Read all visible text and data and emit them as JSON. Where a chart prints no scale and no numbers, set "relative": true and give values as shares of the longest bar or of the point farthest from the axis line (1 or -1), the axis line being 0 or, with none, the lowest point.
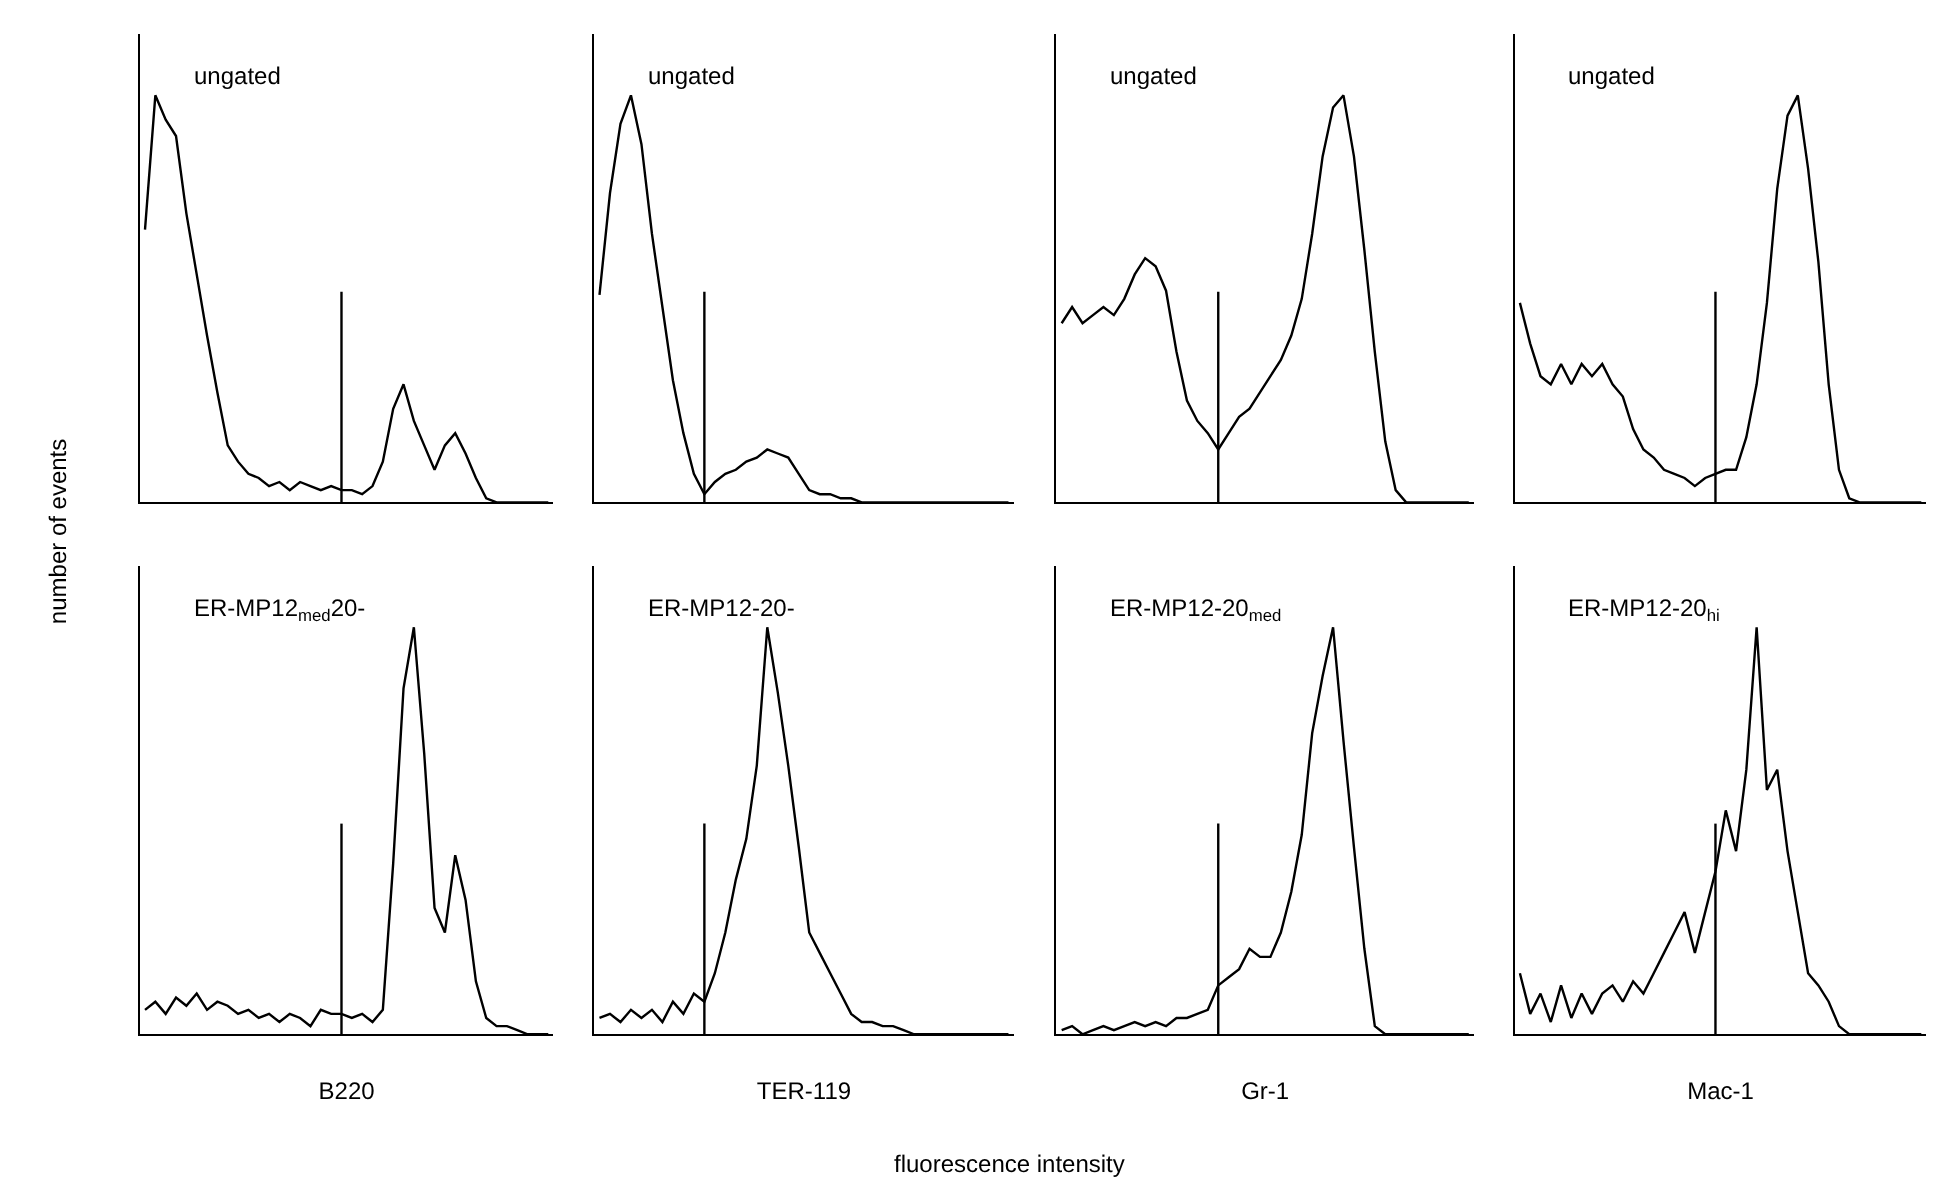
{
  "chart_data": [
    {
      "type": "line",
      "relative": true,
      "color": "#000000",
      "ylabel": "number of events",
      "annotations": [
        "ungated"
      ],
      "categories": [
        null,
        null,
        null,
        null,
        null,
        null,
        null,
        null,
        null,
        null,
        null,
        null,
        null,
        null,
        null,
        null,
        null,
        null,
        null,
        null,
        null,
        null,
        null,
        null,
        null,
        null,
        null,
        null,
        null,
        null,
        null,
        null,
        null,
        null,
        null,
        null,
        null,
        null,
        null,
        null
      ],
      "values": [
        0.67,
        1,
        0.94,
        0.9,
        0.71,
        0.56,
        0.41,
        0.27,
        0.14,
        0.1,
        0.07,
        0.06,
        0.04,
        0.05,
        0.03,
        0.05,
        0.04,
        0.03,
        0.04,
        0.03,
        0.03,
        0.02,
        0.04,
        0.1,
        0.23,
        0.29,
        0.2,
        0.14,
        0.08,
        0.14,
        0.17,
        0.12,
        0.06,
        0.01,
        0,
        0,
        0,
        0,
        0,
        0
      ]
    },
    {
      "type": "line",
      "relative": true,
      "color": "#000000",
      "annotations": [
        "ungated"
      ],
      "categories": [
        null,
        null,
        null,
        null,
        null,
        null,
        null,
        null,
        null,
        null,
        null,
        null,
        null,
        null,
        null,
        null,
        null,
        null,
        null,
        null,
        null,
        null,
        null,
        null,
        null,
        null,
        null,
        null,
        null,
        null,
        null,
        null,
        null,
        null,
        null,
        null,
        null,
        null,
        null,
        null
      ],
      "values": [
        0.51,
        0.76,
        0.93,
        1,
        0.88,
        0.66,
        0.48,
        0.3,
        0.17,
        0.07,
        0.02,
        0.05,
        0.07,
        0.08,
        0.1,
        0.11,
        0.13,
        0.12,
        0.11,
        0.07,
        0.03,
        0.02,
        0.02,
        0.01,
        0.01,
        0,
        0,
        0,
        0,
        0,
        0,
        0,
        0,
        0,
        0,
        0,
        0,
        0,
        0,
        0
      ]
    },
    {
      "type": "line",
      "relative": true,
      "color": "#000000",
      "annotations": [
        "ungated"
      ],
      "categories": [
        null,
        null,
        null,
        null,
        null,
        null,
        null,
        null,
        null,
        null,
        null,
        null,
        null,
        null,
        null,
        null,
        null,
        null,
        null,
        null,
        null,
        null,
        null,
        null,
        null,
        null,
        null,
        null,
        null,
        null,
        null,
        null,
        null,
        null,
        null,
        null,
        null,
        null,
        null,
        null
      ],
      "values": [
        0.44,
        0.48,
        0.44,
        0.46,
        0.48,
        0.46,
        0.5,
        0.56,
        0.6,
        0.58,
        0.52,
        0.37,
        0.25,
        0.2,
        0.17,
        0.13,
        0.17,
        0.21,
        0.23,
        0.27,
        0.31,
        0.35,
        0.41,
        0.5,
        0.66,
        0.85,
        0.97,
        1,
        0.85,
        0.62,
        0.37,
        0.15,
        0.03,
        0,
        0,
        0,
        0,
        0,
        0,
        0
      ]
    },
    {
      "type": "line",
      "relative": true,
      "color": "#000000",
      "annotations": [
        "ungated"
      ],
      "categories": [
        null,
        null,
        null,
        null,
        null,
        null,
        null,
        null,
        null,
        null,
        null,
        null,
        null,
        null,
        null,
        null,
        null,
        null,
        null,
        null,
        null,
        null,
        null,
        null,
        null,
        null,
        null,
        null,
        null,
        null,
        null,
        null,
        null,
        null,
        null,
        null,
        null,
        null,
        null,
        null
      ],
      "values": [
        0.49,
        0.39,
        0.31,
        0.29,
        0.34,
        0.29,
        0.34,
        0.31,
        0.34,
        0.29,
        0.26,
        0.18,
        0.13,
        0.11,
        0.08,
        0.07,
        0.06,
        0.04,
        0.06,
        0.07,
        0.08,
        0.08,
        0.16,
        0.29,
        0.49,
        0.77,
        0.95,
        1,
        0.82,
        0.59,
        0.29,
        0.08,
        0.01,
        0,
        0,
        0,
        0,
        0,
        0,
        0
      ]
    },
    {
      "type": "line",
      "relative": true,
      "color": "#000000",
      "xlabel": "B220",
      "annotations": [
        "ER-MP12$_{med}$20-"
      ],
      "categories": [
        null,
        null,
        null,
        null,
        null,
        null,
        null,
        null,
        null,
        null,
        null,
        null,
        null,
        null,
        null,
        null,
        null,
        null,
        null,
        null,
        null,
        null,
        null,
        null,
        null,
        null,
        null,
        null,
        null,
        null,
        null,
        null,
        null,
        null,
        null,
        null,
        null,
        null,
        null,
        null
      ],
      "values": [
        0.06,
        0.08,
        0.05,
        0.09,
        0.07,
        0.1,
        0.06,
        0.08,
        0.07,
        0.05,
        0.06,
        0.04,
        0.05,
        0.03,
        0.05,
        0.04,
        0.02,
        0.06,
        0.05,
        0.05,
        0.04,
        0.05,
        0.03,
        0.06,
        0.42,
        0.85,
        1,
        0.69,
        0.31,
        0.25,
        0.44,
        0.33,
        0.13,
        0.04,
        0.02,
        0.02,
        0.01,
        0,
        0,
        0
      ]
    },
    {
      "type": "line",
      "relative": true,
      "color": "#000000",
      "xlabel": "TER-119",
      "annotations": [
        "ER-MP12-20-"
      ],
      "categories": [
        null,
        null,
        null,
        null,
        null,
        null,
        null,
        null,
        null,
        null,
        null,
        null,
        null,
        null,
        null,
        null,
        null,
        null,
        null,
        null,
        null,
        null,
        null,
        null,
        null,
        null,
        null,
        null,
        null,
        null,
        null,
        null,
        null,
        null,
        null,
        null,
        null,
        null,
        null,
        null
      ],
      "values": [
        0.04,
        0.05,
        0.03,
        0.06,
        0.04,
        0.06,
        0.03,
        0.08,
        0.05,
        0.1,
        0.08,
        0.15,
        0.25,
        0.38,
        0.48,
        0.66,
        1,
        0.84,
        0.66,
        0.46,
        0.25,
        0.2,
        0.15,
        0.1,
        0.05,
        0.03,
        0.03,
        0.02,
        0.02,
        0.01,
        0,
        0,
        0,
        0,
        0,
        0,
        0,
        0,
        0,
        0
      ]
    },
    {
      "type": "line",
      "relative": true,
      "color": "#000000",
      "xlabel": "Gr-1",
      "annotations": [
        "ER-MP12-20$_{med}$",
        "fluorescence intensity"
      ],
      "categories": [
        null,
        null,
        null,
        null,
        null,
        null,
        null,
        null,
        null,
        null,
        null,
        null,
        null,
        null,
        null,
        null,
        null,
        null,
        null,
        null,
        null,
        null,
        null,
        null,
        null,
        null,
        null,
        null,
        null,
        null,
        null,
        null,
        null,
        null,
        null,
        null,
        null,
        null,
        null,
        null
      ],
      "values": [
        0.01,
        0.02,
        0,
        0.01,
        0.02,
        0.01,
        0.02,
        0.03,
        0.02,
        0.03,
        0.02,
        0.04,
        0.04,
        0.05,
        0.06,
        0.12,
        0.14,
        0.16,
        0.21,
        0.19,
        0.19,
        0.25,
        0.35,
        0.49,
        0.74,
        0.88,
        1,
        0.72,
        0.46,
        0.21,
        0.02,
        0,
        0,
        0,
        0,
        0,
        0,
        0,
        0,
        0
      ]
    },
    {
      "type": "line",
      "relative": true,
      "color": "#000000",
      "xlabel": "Mac-1",
      "annotations": [
        "ER-MP12-20$_{hi}$"
      ],
      "categories": [
        null,
        null,
        null,
        null,
        null,
        null,
        null,
        null,
        null,
        null,
        null,
        null,
        null,
        null,
        null,
        null,
        null,
        null,
        null,
        null,
        null,
        null,
        null,
        null,
        null,
        null,
        null,
        null,
        null,
        null,
        null,
        null,
        null,
        null,
        null,
        null,
        null,
        null,
        null,
        null
      ],
      "values": [
        0.15,
        0.05,
        0.1,
        0.03,
        0.12,
        0.04,
        0.1,
        0.05,
        0.1,
        0.12,
        0.08,
        0.13,
        0.1,
        0.15,
        0.2,
        0.25,
        0.3,
        0.2,
        0.3,
        0.4,
        0.55,
        0.45,
        0.65,
        1,
        0.6,
        0.65,
        0.45,
        0.3,
        0.15,
        0.12,
        0.08,
        0.02,
        0,
        0,
        0,
        0,
        0,
        0,
        0,
        0
      ]
    }
  ]
}
